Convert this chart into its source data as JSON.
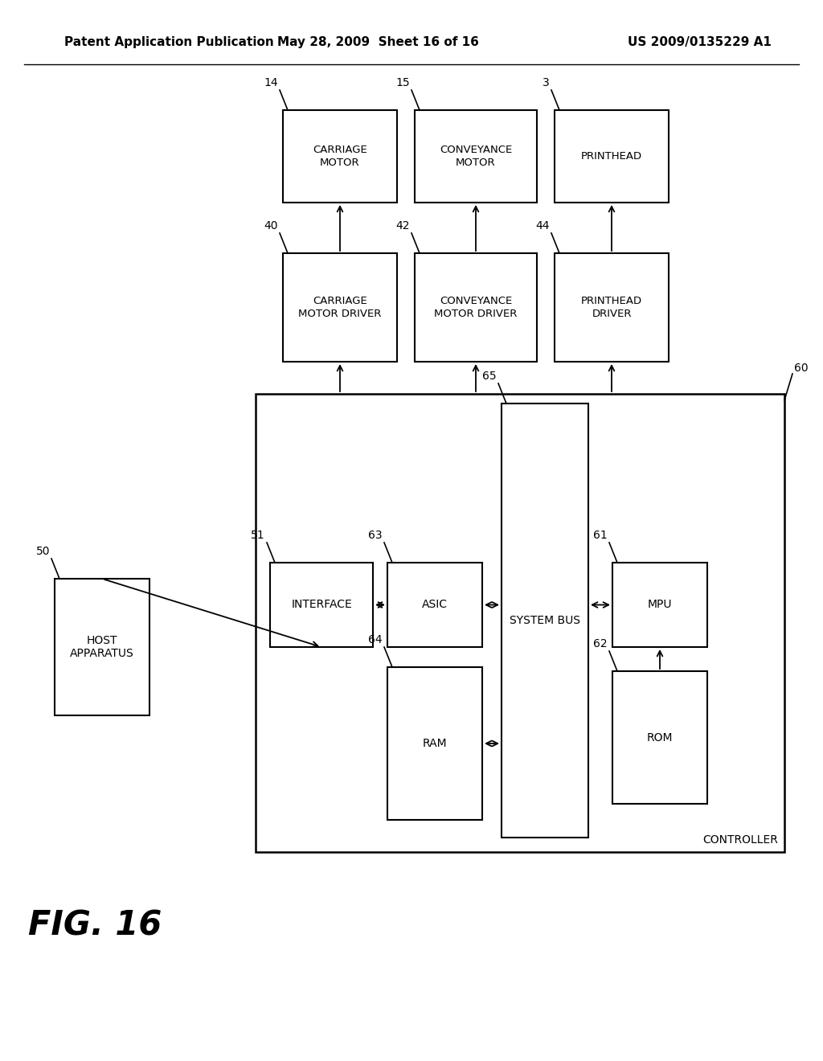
{
  "header_left": "Patent Application Publication",
  "header_mid": "May 28, 2009  Sheet 16 of 16",
  "header_right": "US 2009/0135229 A1",
  "fig_label": "FIG. 16",
  "bg": "#ffffff",
  "fg": "#000000"
}
